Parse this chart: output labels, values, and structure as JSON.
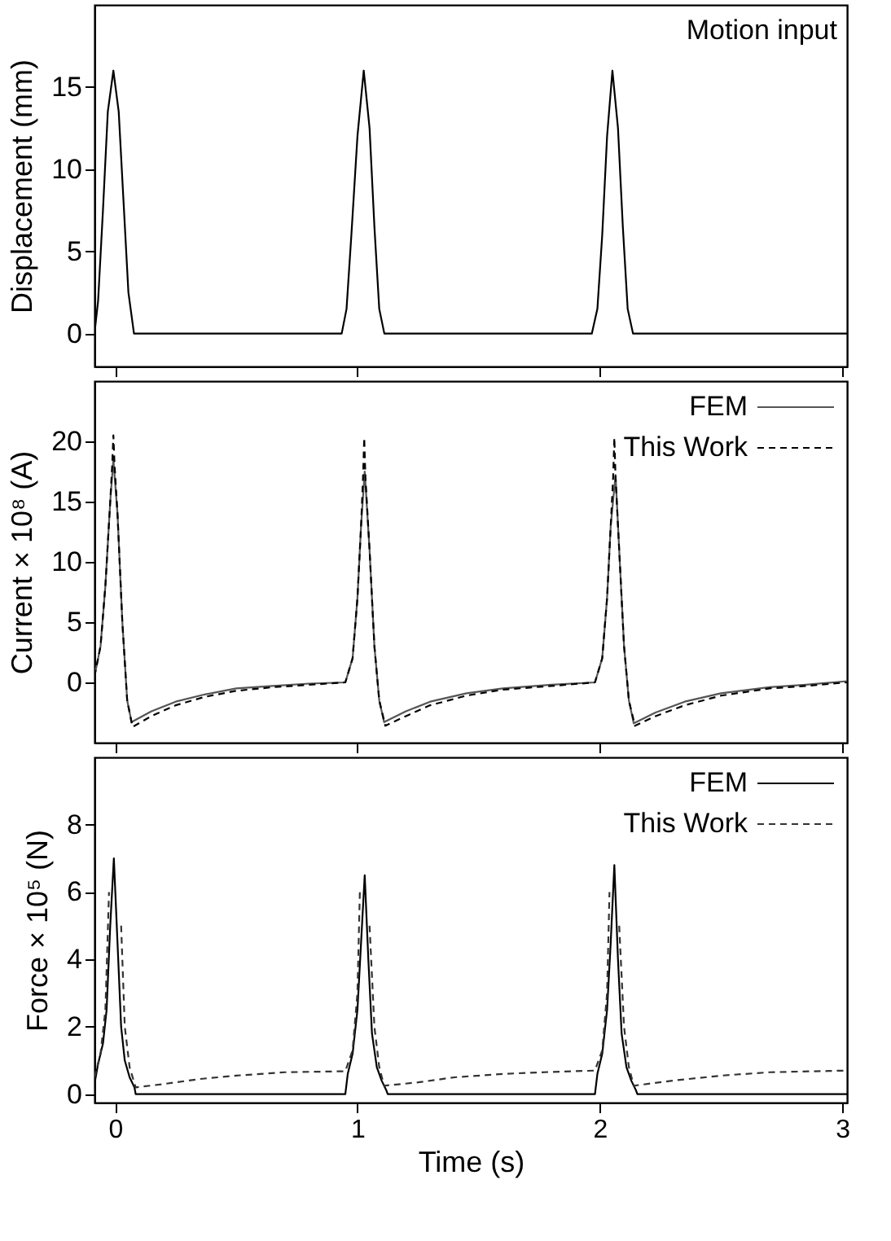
{
  "chart_data": [
    {
      "type": "line",
      "ylabel": "Displacement (mm)",
      "annotations": [
        "Motion input"
      ],
      "xlim": [
        -0.085,
        3.02
      ],
      "xticks": [
        0,
        1,
        2,
        3
      ],
      "ylim": [
        -2,
        20
      ],
      "yticks": [
        0,
        5,
        10,
        15
      ],
      "tick_labels": "y",
      "grid": false,
      "series": [
        {
          "color": "#000000",
          "line_style": "solid",
          "x": [
            -0.085,
            -0.07,
            -0.05,
            -0.03,
            -0.007,
            0.015,
            0.035,
            0.055,
            0.078,
            0.935,
            0.955,
            0.975,
            1.0,
            1.026,
            1.05,
            1.07,
            1.09,
            1.111,
            1.967,
            1.99,
            2.01,
            2.03,
            2.052,
            2.075,
            2.095,
            2.115,
            2.137,
            3.02
          ],
          "values": [
            0,
            2,
            7.5,
            13.5,
            16,
            13.5,
            8,
            2.5,
            0,
            0,
            1.5,
            6,
            12,
            16,
            12.5,
            6.5,
            1.5,
            0,
            0,
            1.5,
            6,
            12,
            16,
            12.5,
            6.5,
            1.5,
            0,
            0
          ]
        }
      ]
    },
    {
      "type": "line",
      "ylabel": "Current × 10⁸ (A)",
      "xlim": [
        -0.085,
        3.02
      ],
      "xticks": [
        0,
        1,
        2,
        3
      ],
      "ylim": [
        -5,
        25
      ],
      "yticks": [
        0,
        5,
        10,
        15,
        20
      ],
      "tick_labels": "y",
      "grid": false,
      "legend": "top right",
      "series": [
        {
          "name": "FEM",
          "color": "#555555",
          "line_style": "solid",
          "x": [
            -0.085,
            -0.06,
            -0.04,
            -0.02,
            -0.007,
            0.01,
            0.03,
            0.05,
            0.068,
            0.15,
            0.25,
            0.37,
            0.5,
            0.65,
            0.8,
            0.95,
            0.98,
            1.0,
            1.015,
            1.03,
            1.05,
            1.07,
            1.09,
            1.11,
            1.2,
            1.3,
            1.45,
            1.6,
            1.8,
            1.98,
            2.01,
            2.03,
            2.045,
            2.065,
            2.08,
            2.1,
            2.12,
            2.14,
            2.23,
            2.35,
            2.5,
            2.7,
            2.85,
            3.02
          ],
          "values": [
            0.5,
            3,
            8,
            15,
            18.5,
            14,
            5,
            -1.5,
            -3.3,
            -2.4,
            -1.6,
            -1.0,
            -0.5,
            -0.3,
            -0.1,
            0,
            2,
            7,
            13,
            17.5,
            11,
            3,
            -1.5,
            -3.3,
            -2.4,
            -1.6,
            -0.9,
            -0.5,
            -0.2,
            0,
            2,
            7,
            13,
            17.2,
            11,
            3,
            -1.5,
            -3.4,
            -2.5,
            -1.6,
            -0.9,
            -0.4,
            -0.2,
            0.1
          ]
        },
        {
          "name": "This Work",
          "color": "#000000",
          "line_style": "dashed",
          "x": [
            -0.085,
            -0.06,
            -0.04,
            -0.02,
            -0.012,
            -0.007,
            -0.002,
            0.01,
            0.03,
            0.05,
            0.072,
            0.15,
            0.25,
            0.37,
            0.5,
            0.65,
            0.8,
            0.95,
            0.98,
            1.0,
            1.015,
            1.023,
            1.028,
            1.033,
            1.05,
            1.07,
            1.09,
            1.115,
            1.2,
            1.3,
            1.45,
            1.6,
            1.8,
            1.98,
            2.01,
            2.03,
            2.045,
            2.055,
            2.06,
            2.065,
            2.08,
            2.1,
            2.12,
            2.145,
            2.23,
            2.35,
            2.5,
            2.7,
            2.85,
            3.02
          ],
          "values": [
            0.5,
            3,
            8,
            15,
            18,
            20.5,
            18,
            14,
            5,
            -1.5,
            -3.7,
            -2.8,
            -1.9,
            -1.2,
            -0.7,
            -0.4,
            -0.2,
            0,
            2,
            7,
            13,
            17,
            20.3,
            17,
            11,
            3,
            -1.5,
            -3.6,
            -2.8,
            -1.9,
            -1.1,
            -0.6,
            -0.3,
            0,
            2,
            7,
            13,
            17,
            20.3,
            17,
            11,
            3,
            -1.5,
            -3.6,
            -2.8,
            -1.9,
            -1.1,
            -0.5,
            -0.3,
            0
          ]
        }
      ]
    },
    {
      "type": "line",
      "xlabel": "Time (s)",
      "ylabel": "Force × 10⁵ (N)",
      "xlim": [
        -0.085,
        3.02
      ],
      "xticks": [
        0,
        1,
        2,
        3
      ],
      "ylim": [
        -0.25,
        10
      ],
      "yticks": [
        0,
        2,
        4,
        6,
        8
      ],
      "grid": false,
      "legend": "top right",
      "series": [
        {
          "name": "FEM",
          "color": "#000000",
          "line_style": "solid",
          "x": [
            -0.085,
            -0.07,
            -0.05,
            -0.035,
            -0.02,
            -0.005,
            0.01,
            0.025,
            0.04,
            0.06,
            0.08,
            0.085,
            0.95,
            0.96,
            0.98,
            1.0,
            1.015,
            1.03,
            1.045,
            1.06,
            1.08,
            1.1,
            1.12,
            1.125,
            1.98,
            1.99,
            2.01,
            2.03,
            2.045,
            2.06,
            2.075,
            2.09,
            2.11,
            2.13,
            2.15,
            2.155,
            3.02
          ],
          "values": [
            0.3,
            0.9,
            1.5,
            2.5,
            5,
            7.0,
            4.5,
            2,
            1,
            0.5,
            0.2,
            0,
            0,
            0.6,
            1.2,
            2.5,
            4.5,
            6.5,
            4,
            1.8,
            0.8,
            0.4,
            0.1,
            0,
            0,
            0.6,
            1.2,
            2.5,
            4.5,
            6.8,
            4,
            1.8,
            0.8,
            0.4,
            0.1,
            0,
            0
          ]
        },
        {
          "name": "This Work",
          "color": "#333333",
          "line_style": "dashed",
          "x": [
            -0.085,
            -0.06,
            -0.04,
            -0.025,
            -0.015,
            0.012,
            0.025,
            0.04,
            0.06,
            0.085,
            0.2,
            0.35,
            0.5,
            0.7,
            0.95,
            0.98,
            1.0,
            1.01,
            1.018,
            1.04,
            1.05,
            1.07,
            1.09,
            1.11,
            1.25,
            1.4,
            1.6,
            1.8,
            1.98,
            2.01,
            2.03,
            2.04,
            2.048,
            2.07,
            2.08,
            2.1,
            2.12,
            2.14,
            2.3,
            2.5,
            2.7,
            3.02
          ],
          "values": [
            0.5,
            1.2,
            2.5,
            6,
            null,
            null,
            5,
            2,
            0.8,
            0.2,
            0.3,
            0.45,
            0.55,
            0.65,
            0.68,
            1.3,
            3,
            6,
            null,
            null,
            5,
            2,
            0.8,
            0.25,
            0.35,
            0.5,
            0.6,
            0.66,
            0.7,
            1.3,
            3,
            6,
            null,
            null,
            5,
            2,
            0.8,
            0.25,
            0.4,
            0.55,
            0.65,
            0.7
          ]
        }
      ]
    }
  ]
}
